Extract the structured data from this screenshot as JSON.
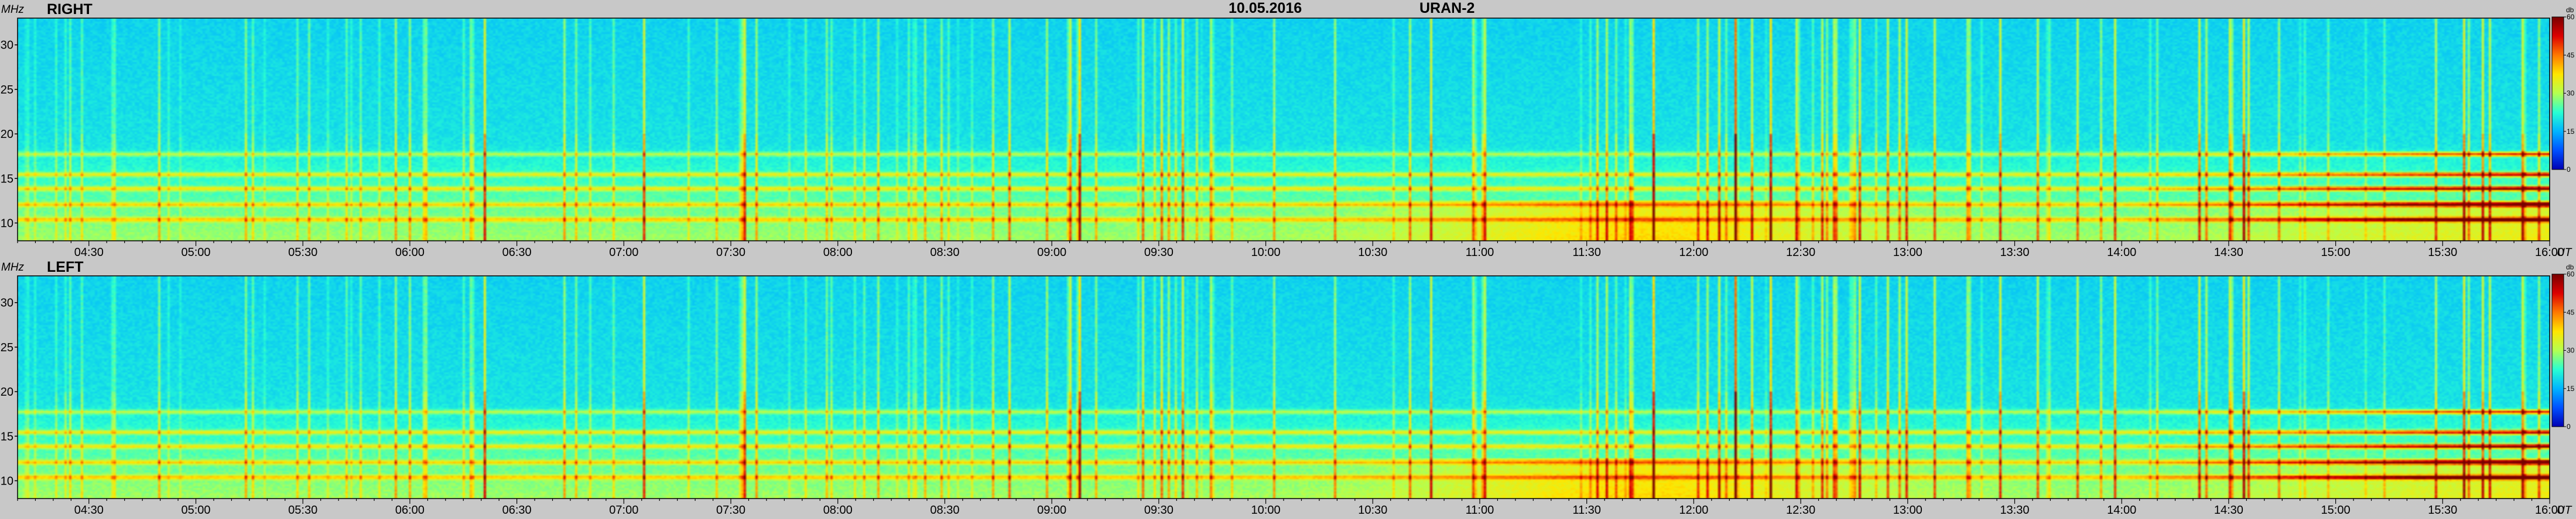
{
  "header": {
    "date": "10.05.2016",
    "instrument": "URAN-2"
  },
  "colors": {
    "background": "#c8c8c8",
    "colormap": [
      "#0000b4",
      "#0050ff",
      "#00b4ff",
      "#28ffd2",
      "#b4ff50",
      "#ffe600",
      "#ff7800",
      "#dc0000",
      "#780000"
    ]
  },
  "chart_data": [
    {
      "type": "heatmap",
      "title": "RIGHT",
      "ylabel": "MHz",
      "xlabel": "UT",
      "x_range": [
        "04:10",
        "16:00"
      ],
      "ylim": [
        8,
        33
      ],
      "x_ticks": [
        "04:30",
        "05:00",
        "05:30",
        "06:00",
        "06:30",
        "07:00",
        "07:30",
        "08:00",
        "08:30",
        "09:00",
        "09:30",
        "10:00",
        "10:30",
        "11:00",
        "11:30",
        "12:00",
        "12:30",
        "13:00",
        "13:30",
        "14:00",
        "14:30",
        "15:00",
        "15:30",
        "16:00"
      ],
      "y_ticks": [
        10,
        15,
        20,
        25,
        30
      ],
      "colorbar": {
        "unit": "db",
        "range": [
          0,
          60
        ],
        "ticks": [
          0,
          15,
          30,
          45,
          60
        ]
      },
      "bands_mhz": [
        10.3,
        12.0,
        13.8,
        15.4,
        17.7
      ],
      "intense_after": "14:00"
    },
    {
      "type": "heatmap",
      "title": "LEFT",
      "ylabel": "MHz",
      "xlabel": "UT",
      "x_range": [
        "04:10",
        "16:00"
      ],
      "ylim": [
        8,
        33
      ],
      "x_ticks": [
        "04:30",
        "05:00",
        "05:30",
        "06:00",
        "06:30",
        "07:00",
        "07:30",
        "08:00",
        "08:30",
        "09:00",
        "09:30",
        "10:00",
        "10:30",
        "11:00",
        "11:30",
        "12:00",
        "12:30",
        "13:00",
        "13:30",
        "14:00",
        "14:30",
        "15:00",
        "15:30",
        "16:00"
      ],
      "y_ticks": [
        10,
        15,
        20,
        25,
        30
      ],
      "colorbar": {
        "unit": "db",
        "range": [
          0,
          60
        ],
        "ticks": [
          0,
          15,
          30,
          45,
          60
        ]
      },
      "bands_mhz": [
        10.3,
        12.0,
        13.8,
        15.4,
        17.7
      ],
      "intense_after": "14:00"
    }
  ]
}
